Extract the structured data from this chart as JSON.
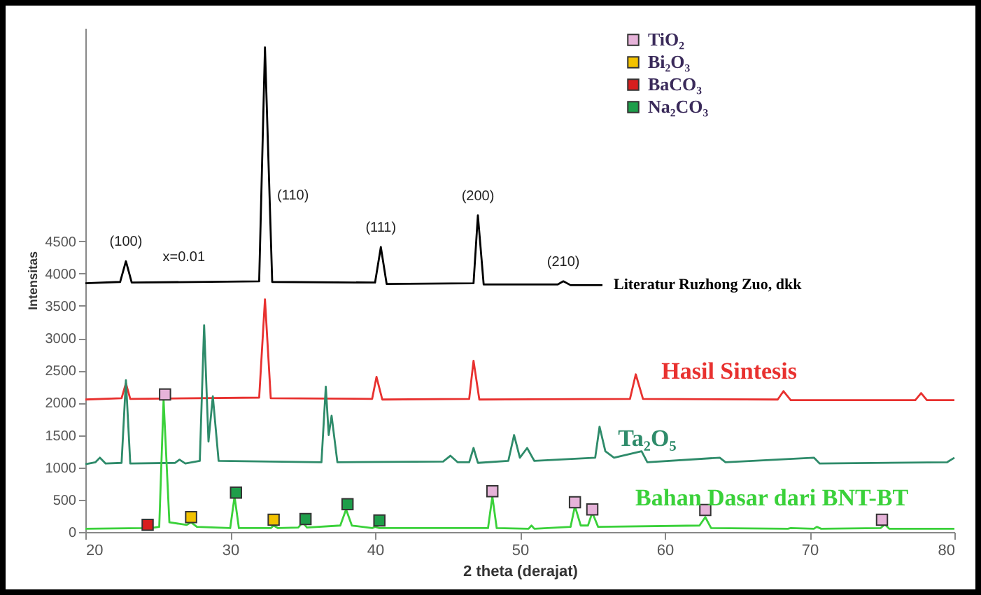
{
  "chart_data": {
    "type": "line",
    "xlabel": "2 theta (derajat)",
    "ylabel": "Intensitas",
    "xlim": [
      20,
      80
    ],
    "xticks": [
      20,
      30,
      40,
      50,
      60,
      70,
      80
    ],
    "ylim": [
      0,
      7800
    ],
    "yticks": [
      0,
      500,
      1000,
      1500,
      2000,
      2500,
      3000,
      3500,
      4000,
      4500
    ],
    "legend": "top right",
    "line_style": "solid",
    "series": [
      {
        "name": "Literatur Ruzhong Zuo, dkk",
        "color": "#000000",
        "x": [
          20,
          22.4,
          22.8,
          23.2,
          32.0,
          32.4,
          32.9,
          40.0,
          40.4,
          40.8,
          46.8,
          47.1,
          47.5,
          52.6,
          53.0,
          53.5,
          55.7
        ],
        "values": [
          3850,
          3870,
          4190,
          3860,
          3880,
          7500,
          3870,
          3860,
          4410,
          3840,
          3850,
          4900,
          3830,
          3830,
          3880,
          3820,
          3820
        ]
      },
      {
        "name": "Hasil Sintesis",
        "color": "#e8312f",
        "x": [
          20,
          22.5,
          22.8,
          23.1,
          32.0,
          32.4,
          32.8,
          39.8,
          40.1,
          40.5,
          46.5,
          46.8,
          47.2,
          57.6,
          58.0,
          58.5,
          67.8,
          68.2,
          68.7,
          77.3,
          77.7,
          78.1,
          80
        ],
        "values": [
          2050,
          2070,
          2300,
          2060,
          2080,
          3600,
          2070,
          2060,
          2400,
          2050,
          2060,
          2650,
          2050,
          2060,
          2440,
          2060,
          2050,
          2180,
          2040,
          2040,
          2150,
          2040,
          2040
        ]
      },
      {
        "name": "Ta₂O₅",
        "color": "#2e8b6a",
        "x": [
          20,
          20.7,
          21.0,
          21.4,
          22.5,
          22.8,
          23.1,
          26.2,
          26.5,
          26.9,
          27.9,
          28.2,
          28.5,
          28.8,
          29.2,
          36.3,
          36.6,
          36.8,
          37.0,
          37.4,
          44.7,
          45.2,
          45.7,
          46.5,
          46.8,
          47.1,
          49.2,
          49.6,
          50.0,
          50.5,
          51.0,
          55.2,
          55.5,
          55.9,
          56.5,
          58.4,
          58.8,
          63.8,
          64.2,
          70.3,
          70.7,
          79.5,
          80
        ],
        "values": [
          1050,
          1080,
          1150,
          1060,
          1070,
          2350,
          1060,
          1070,
          1120,
          1060,
          1100,
          3200,
          1400,
          2100,
          1100,
          1080,
          2250,
          1500,
          1800,
          1080,
          1090,
          1180,
          1080,
          1080,
          1300,
          1070,
          1100,
          1500,
          1150,
          1300,
          1100,
          1150,
          1630,
          1250,
          1150,
          1250,
          1080,
          1150,
          1080,
          1150,
          1060,
          1080,
          1150
        ]
      },
      {
        "name": "Bahan Dasar dari BNT-BT",
        "color": "#3ad13a",
        "x": [
          20,
          24.0,
          24.2,
          24.5,
          25.1,
          25.4,
          25.8,
          27.0,
          27.3,
          27.7,
          30.0,
          30.3,
          30.6,
          32.8,
          33.0,
          33.3,
          34.7,
          35.0,
          35.3,
          37.6,
          38.0,
          38.4,
          39.8,
          40.0,
          40.3,
          47.8,
          48.1,
          48.4,
          50.6,
          50.8,
          51.0,
          53.5,
          53.8,
          54.2,
          54.7,
          55.0,
          55.4,
          62.4,
          62.8,
          63.2,
          68.5,
          68.7,
          70.3,
          70.5,
          70.8,
          74.9,
          75.2,
          75.5,
          80
        ],
        "values": [
          50,
          60,
          80,
          60,
          80,
          2050,
          150,
          110,
          150,
          80,
          60,
          550,
          60,
          60,
          100,
          60,
          70,
          150,
          70,
          100,
          350,
          100,
          60,
          80,
          60,
          60,
          550,
          60,
          50,
          100,
          50,
          80,
          400,
          100,
          100,
          300,
          80,
          100,
          230,
          60,
          50,
          60,
          50,
          80,
          50,
          60,
          120,
          50,
          50
        ]
      },
      {
        "name": "TiO₂",
        "type": "scatter",
        "marker": "square",
        "color": "#e6b3d9",
        "x": [
          25.5,
          48.1,
          53.8,
          55.0,
          62.8,
          75.0
        ],
        "values": [
          2130,
          630,
          460,
          350,
          340,
          190
        ]
      },
      {
        "name": "Bi₂O₃",
        "type": "scatter",
        "marker": "square",
        "color": "#f2c200",
        "x": [
          27.3,
          33.0
        ],
        "values": [
          230,
          190
        ]
      },
      {
        "name": "BaCO₃",
        "type": "scatter",
        "marker": "square",
        "color": "#d81e1e",
        "x": [
          24.3
        ],
        "values": [
          110
        ]
      },
      {
        "name": "Na₂CO₃",
        "type": "scatter",
        "marker": "square",
        "color": "#1e9e4a",
        "x": [
          30.4,
          35.2,
          38.1,
          40.3
        ],
        "values": [
          610,
          200,
          430,
          180
        ]
      }
    ],
    "annotations": [
      {
        "text": "(100)",
        "x": 22.8,
        "y": 4190
      },
      {
        "text": "x=0.01",
        "x": 26.8,
        "y": 3950
      },
      {
        "text": "(110)",
        "x": 32.4,
        "y": 5100
      },
      {
        "text": "(111)",
        "x": 40.4,
        "y": 4410
      },
      {
        "text": "(200)",
        "x": 47.1,
        "y": 4900
      },
      {
        "text": "(210)",
        "x": 53.0,
        "y": 3880
      }
    ]
  }
}
